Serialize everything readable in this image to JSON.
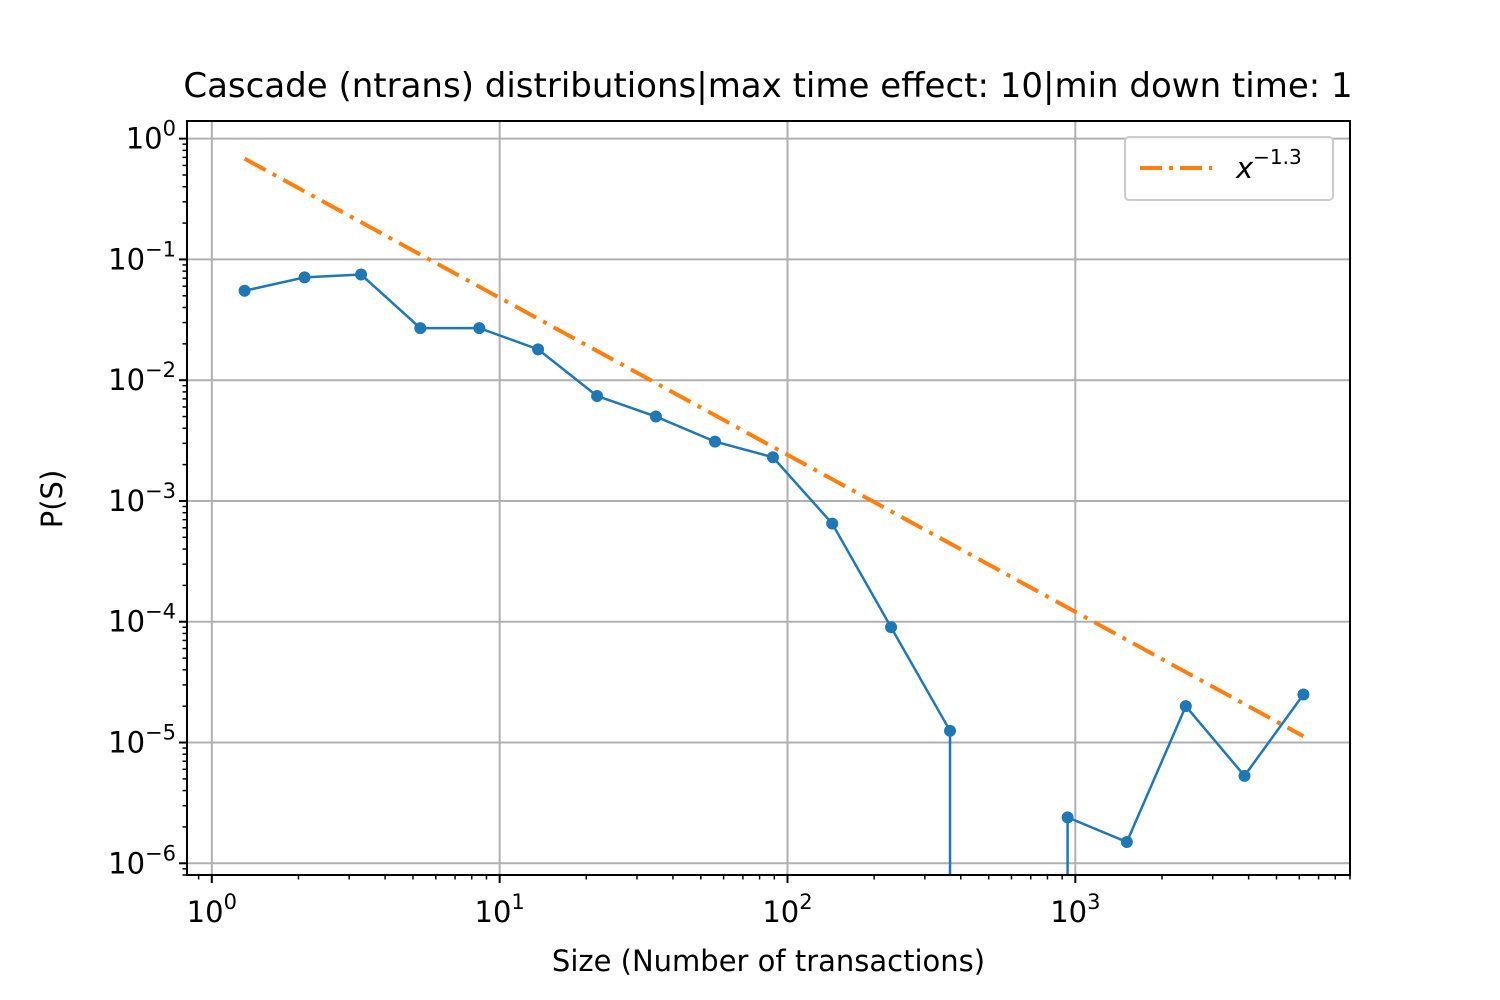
{
  "chart_data": {
    "type": "line",
    "title": "Cascade (ntrans) distributions|max time effect: 10|min down time: 1",
    "xlabel": "Size (Number of transactions)",
    "ylabel": "P(S)",
    "xscale": "log",
    "yscale": "log",
    "xlim": [
      0.82,
      9000
    ],
    "ylim": [
      8e-07,
      1.4
    ],
    "grid": true,
    "legend_position": "top-right",
    "x_ticks": [
      {
        "value": 1,
        "base": "10",
        "exp": "0"
      },
      {
        "value": 10,
        "base": "10",
        "exp": "1"
      },
      {
        "value": 100,
        "base": "10",
        "exp": "2"
      },
      {
        "value": 1000,
        "base": "10",
        "exp": "3"
      }
    ],
    "y_ticks": [
      {
        "value": 1,
        "base": "10",
        "exp": "0"
      },
      {
        "value": 0.1,
        "base": "10",
        "exp": "−1"
      },
      {
        "value": 0.01,
        "base": "10",
        "exp": "−2"
      },
      {
        "value": 0.001,
        "base": "10",
        "exp": "−3"
      },
      {
        "value": 0.0001,
        "base": "10",
        "exp": "−4"
      },
      {
        "value": 1e-05,
        "base": "10",
        "exp": "−5"
      },
      {
        "value": 1e-06,
        "base": "10",
        "exp": "−6"
      }
    ],
    "series": [
      {
        "color": "#1f77b4",
        "style": "solid-with-dots",
        "x": [
          1.3,
          2.1,
          3.3,
          5.3,
          8.5,
          13.6,
          21.8,
          34.9,
          56,
          89,
          143,
          229,
          367,
          587,
          940,
          1510,
          2420,
          3870,
          6200
        ],
        "y": [
          0.055,
          0.071,
          0.075,
          0.027,
          0.027,
          0.018,
          0.0074,
          0.005,
          0.0031,
          0.0023,
          0.00065,
          9e-05,
          1.25e-05,
          0,
          2.4e-06,
          1.5e-06,
          2e-05,
          5.3e-06,
          2.5e-05
        ]
      },
      {
        "name": "x^{-1.3}",
        "legend_base": "x",
        "legend_exp": "−1.3",
        "color": "#ff7f0e",
        "style": "dash-dot",
        "power": -1.3,
        "coefficient": 0.96,
        "x_range": [
          1.3,
          6200
        ]
      }
    ]
  }
}
